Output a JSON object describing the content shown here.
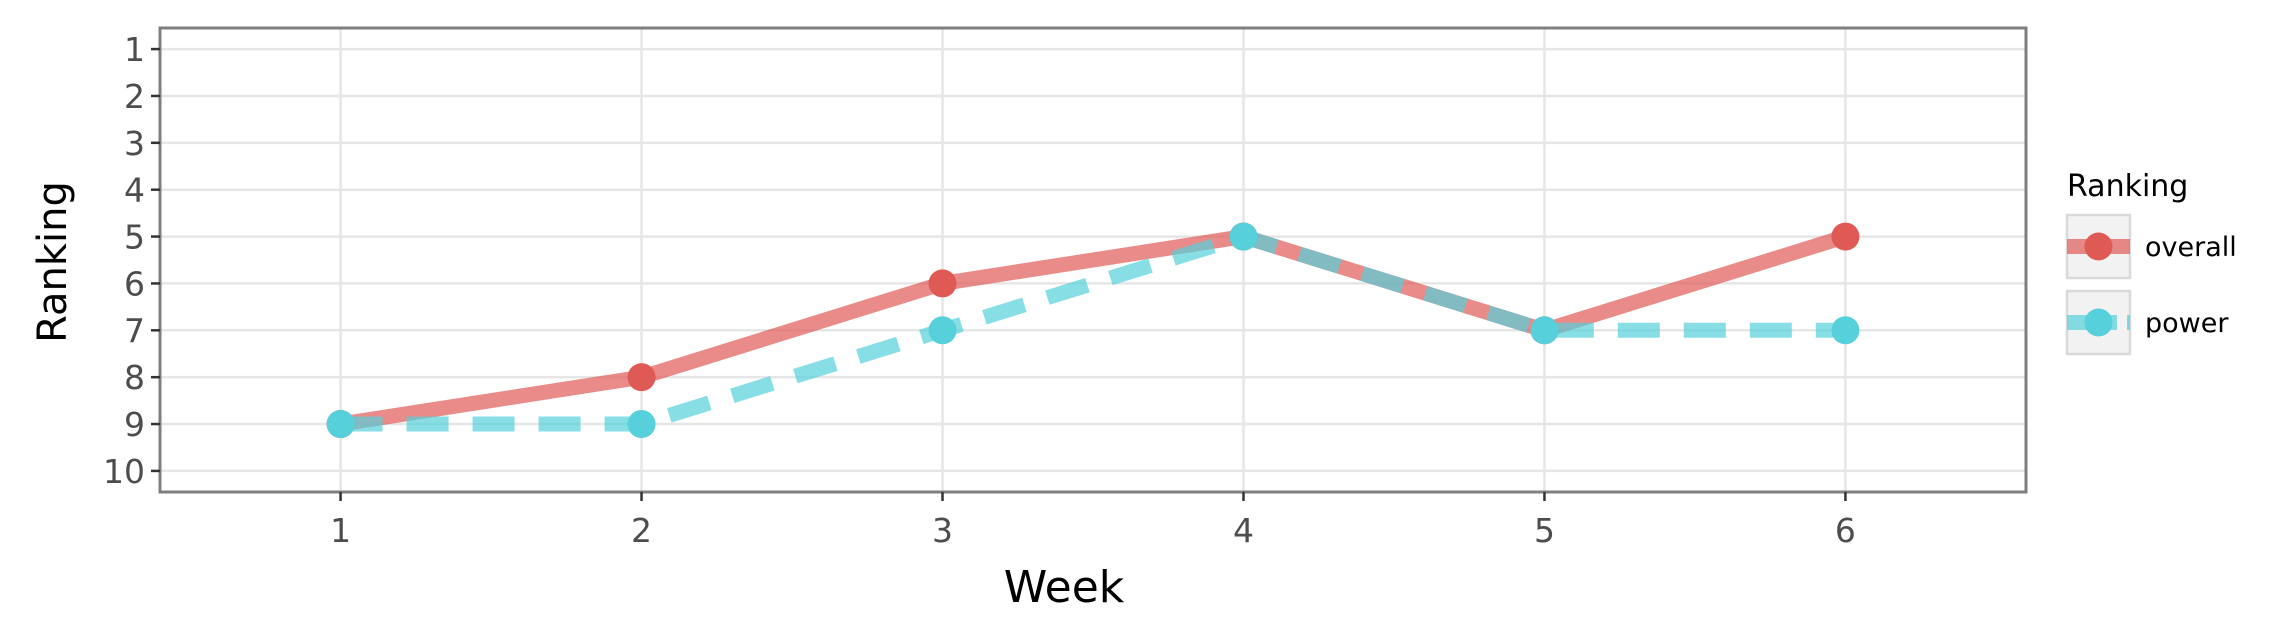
{
  "chart_data": {
    "type": "line",
    "title": "",
    "xlabel": "Week",
    "ylabel": "Ranking",
    "x": [
      1,
      2,
      3,
      4,
      5,
      6
    ],
    "xticks": [
      "1",
      "2",
      "3",
      "4",
      "5",
      "6"
    ],
    "xlim": [
      0.4,
      6.6
    ],
    "yticks": [
      "1",
      "2",
      "3",
      "4",
      "5",
      "6",
      "7",
      "8",
      "9",
      "10"
    ],
    "ylim": [
      0.55,
      10.45
    ],
    "y_reversed": true,
    "grid": true,
    "legend": {
      "title": "Ranking",
      "placement": "right"
    },
    "series": [
      {
        "name": "overall",
        "values": [
          9,
          8,
          6,
          5,
          7,
          5
        ],
        "color": "#e05a55",
        "line_style": "solid"
      },
      {
        "name": "power",
        "values": [
          9,
          9,
          7,
          5,
          7,
          7
        ],
        "color": "#56d0da",
        "line_style": "dashed"
      }
    ]
  }
}
